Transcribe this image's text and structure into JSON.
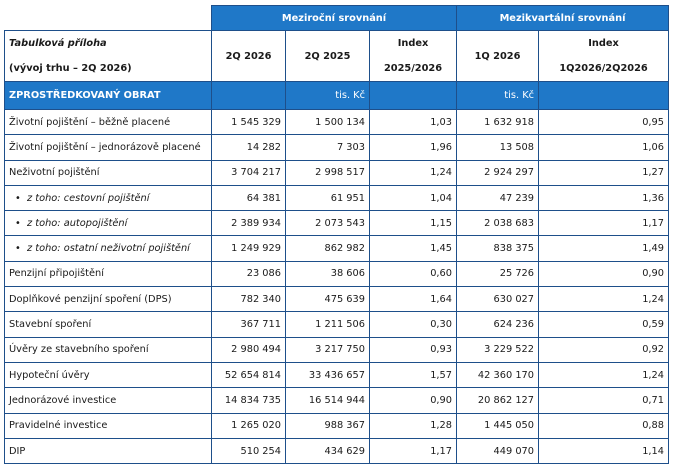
{
  "header": {
    "yoy_title": "Meziroční srovnání",
    "qoq_title": "Mezikvartální srovnání",
    "appendix_title": "Tabulková příloha",
    "appendix_subtitle": "(vývoj trhu – 2Q 2026)",
    "col_2q2026": "2Q 2026",
    "col_2q2025": "2Q 2025",
    "col_index_label": "Index",
    "col_index_yoy": "2025/2026",
    "col_1q2026": "1Q 2026",
    "col_index_qoq": "1Q2026/2Q2026"
  },
  "section": {
    "title": "ZPROSTŘEDKOVANÝ OBRAT",
    "unit_yoy": "tis. Kč",
    "unit_qoq": "tis. Kč"
  },
  "rows": [
    {
      "name": "Životní pojištění – běžně placené",
      "q2_2026": "1 545 329",
      "q2_2025": "1 500 134",
      "idx_yoy": "1,03",
      "q1_2026": "1 632 918",
      "idx_qoq": "0,95"
    },
    {
      "name": "Životní pojištění – jednorázově placené",
      "q2_2026": "14 282",
      "q2_2025": "7 303",
      "idx_yoy": "1,96",
      "q1_2026": "13 508",
      "idx_qoq": "1,06"
    },
    {
      "name": "Neživotní pojištění",
      "q2_2026": "3 704 217",
      "q2_2025": "2 998 517",
      "idx_yoy": "1,24",
      "q1_2026": "2 924 297",
      "idx_qoq": "1,27"
    },
    {
      "name": "z toho: cestovní pojištění",
      "q2_2026": "64 381",
      "q2_2025": "61 951",
      "idx_yoy": "1,04",
      "q1_2026": "47 239",
      "idx_qoq": "1,36"
    },
    {
      "name": "z toho: autopojištění",
      "q2_2026": "2 389 934",
      "q2_2025": "2 073 543",
      "idx_yoy": "1,15",
      "q1_2026": "2 038 683",
      "idx_qoq": "1,17"
    },
    {
      "name": "z toho: ostatní neživotní pojištění",
      "q2_2026": "1 249 929",
      "q2_2025": "862 982",
      "idx_yoy": "1,45",
      "q1_2026": "838 375",
      "idx_qoq": "1,49"
    },
    {
      "name": "Penzijní připojištění",
      "q2_2026": "23 086",
      "q2_2025": "38 606",
      "idx_yoy": "0,60",
      "q1_2026": "25 726",
      "idx_qoq": "0,90"
    },
    {
      "name": "Doplňkové penzijní spoření (DPS)",
      "q2_2026": "782 340",
      "q2_2025": "475 639",
      "idx_yoy": "1,64",
      "q1_2026": "630 027",
      "idx_qoq": "1,24"
    },
    {
      "name": "Stavební spoření",
      "q2_2026": "367 711",
      "q2_2025": "1 211 506",
      "idx_yoy": "0,30",
      "q1_2026": "624 236",
      "idx_qoq": "0,59"
    },
    {
      "name": "Úvěry ze stavebního spoření",
      "q2_2026": "2 980 494",
      "q2_2025": "3 217 750",
      "idx_yoy": "0,93",
      "q1_2026": "3 229 522",
      "idx_qoq": "0,92"
    },
    {
      "name": "Hypoteční úvěry",
      "q2_2026": "52 654 814",
      "q2_2025": "33 436 657",
      "idx_yoy": "1,57",
      "q1_2026": "42 360 170",
      "idx_qoq": "1,24"
    },
    {
      "name": "Jednorázové investice",
      "q2_2026": "14 834 735",
      "q2_2025": "16 514 944",
      "idx_yoy": "0,90",
      "q1_2026": "20 862 127",
      "idx_qoq": "0,71"
    },
    {
      "name": "Pravidelné investice",
      "q2_2026": "1 265 020",
      "q2_2025": "988 367",
      "idx_yoy": "1,28",
      "q1_2026": "1 445 050",
      "idx_qoq": "0,88"
    },
    {
      "name": "DIP",
      "q2_2026": "510 254",
      "q2_2025": "434 629",
      "idx_yoy": "1,17",
      "q1_2026": "449 070",
      "idx_qoq": "1,14"
    }
  ],
  "bullet_char": "•",
  "colors": {
    "header_blue": "#1f78c8",
    "border": "#1e4f8a"
  }
}
